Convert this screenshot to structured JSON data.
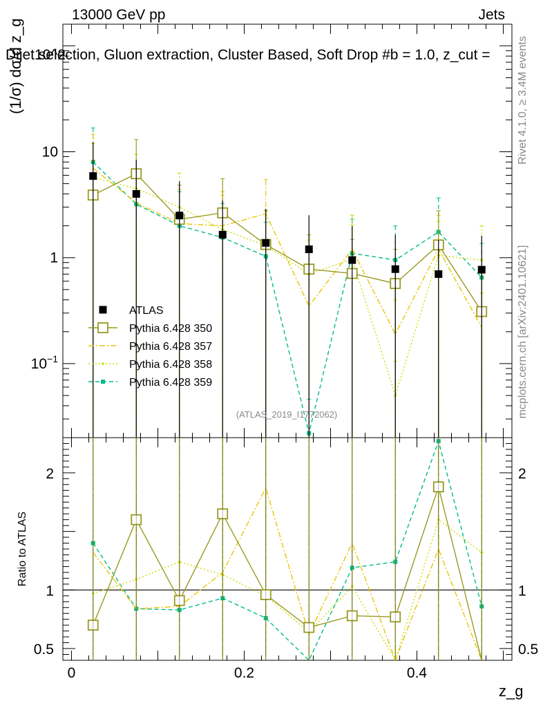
{
  "chart_data": {
    "type": "scatter",
    "header_left": "13000 GeV pp",
    "header_right": "Jets",
    "title": "Dijet selection, Gluon extraction, Cluster Based, Soft Drop #b = 1.0, z_cut = ",
    "ylabel": "(1/σ) dσ/d z_g",
    "ylabel_cutoff": "10^2",
    "xlabel": "z_g",
    "ratio_ylabel": "Ratio to ATLAS",
    "watermark_rivet": "Rivet 4.1.0, ≥ 3.4M events",
    "watermark_site": "mcplots.cern.ch [arXiv:2401.10621]",
    "analysis_ref": "(ATLAS_2019_I1772062)",
    "x": [
      0.025,
      0.075,
      0.125,
      0.175,
      0.225,
      0.275,
      0.325,
      0.375,
      0.425,
      0.475
    ],
    "x_range": [
      -0.01,
      0.51
    ],
    "y_range_main": [
      0.02,
      160
    ],
    "y_range_ratio": [
      0.4,
      2.3
    ],
    "main_ticks": [
      {
        "value": 10,
        "label": "10"
      },
      {
        "value": 1,
        "label": "1"
      },
      {
        "value": 0.1,
        "label": "10^-1"
      }
    ],
    "ratio_ticks": [
      {
        "value": 2,
        "label": "2"
      },
      {
        "value": 1,
        "label": "1"
      },
      {
        "value": 0.5,
        "label": "0.5"
      }
    ],
    "x_ticks": [
      {
        "value": 0,
        "label": "0"
      },
      {
        "value": 0.2,
        "label": "0.2"
      },
      {
        "value": 0.4,
        "label": "0.4"
      }
    ],
    "series": [
      {
        "name": "ATLAS",
        "color": "#000000",
        "marker": "square-filled",
        "dash": "none",
        "values": [
          5.9,
          4.0,
          2.5,
          1.65,
          1.38,
          1.2,
          0.95,
          0.78,
          0.7,
          0.77
        ]
      },
      {
        "name": "Pythia 6.428 350",
        "color": "#999922",
        "marker": "square-open",
        "dash": "solid",
        "values": [
          3.9,
          6.2,
          2.3,
          2.65,
          1.33,
          0.78,
          0.71,
          0.57,
          1.32,
          0.31
        ],
        "ratio": [
          0.7,
          1.6,
          0.91,
          1.65,
          0.96,
          0.68,
          0.78,
          0.77,
          1.88,
          0.38
        ]
      },
      {
        "name": "Pythia 6.428 357",
        "color": "#E8C500",
        "marker": "none",
        "dash": "dashdot",
        "values": [
          7.0,
          3.3,
          2.1,
          2.0,
          2.6,
          0.35,
          1.2,
          0.19,
          1.2,
          0.22
        ],
        "ratio": [
          1.32,
          0.84,
          0.86,
          1.15,
          1.87,
          0.62,
          1.4,
          0.25,
          1.35,
          0.28
        ]
      },
      {
        "name": "Pythia 6.428 358",
        "color": "#CCDD00",
        "marker": "dot",
        "dash": "dotted",
        "values": [
          5.7,
          4.5,
          3.0,
          1.85,
          1.3,
          0.7,
          0.97,
          0.05,
          1.05,
          0.95
        ],
        "ratio": [
          0.97,
          1.09,
          1.24,
          1.13,
          0.95,
          0.64,
          1.03,
          0.065,
          1.6,
          1.32
        ]
      },
      {
        "name": "Pythia 6.428 359",
        "color": "#00BB88",
        "marker": "square-small",
        "dash": "dashed",
        "values": [
          8.0,
          3.2,
          2.0,
          1.55,
          1.03,
          0.022,
          1.1,
          0.95,
          1.75,
          0.65
        ],
        "ratio": [
          1.4,
          0.84,
          0.83,
          0.93,
          0.76,
          0.02,
          1.19,
          1.24,
          2.27,
          0.86
        ]
      }
    ]
  }
}
